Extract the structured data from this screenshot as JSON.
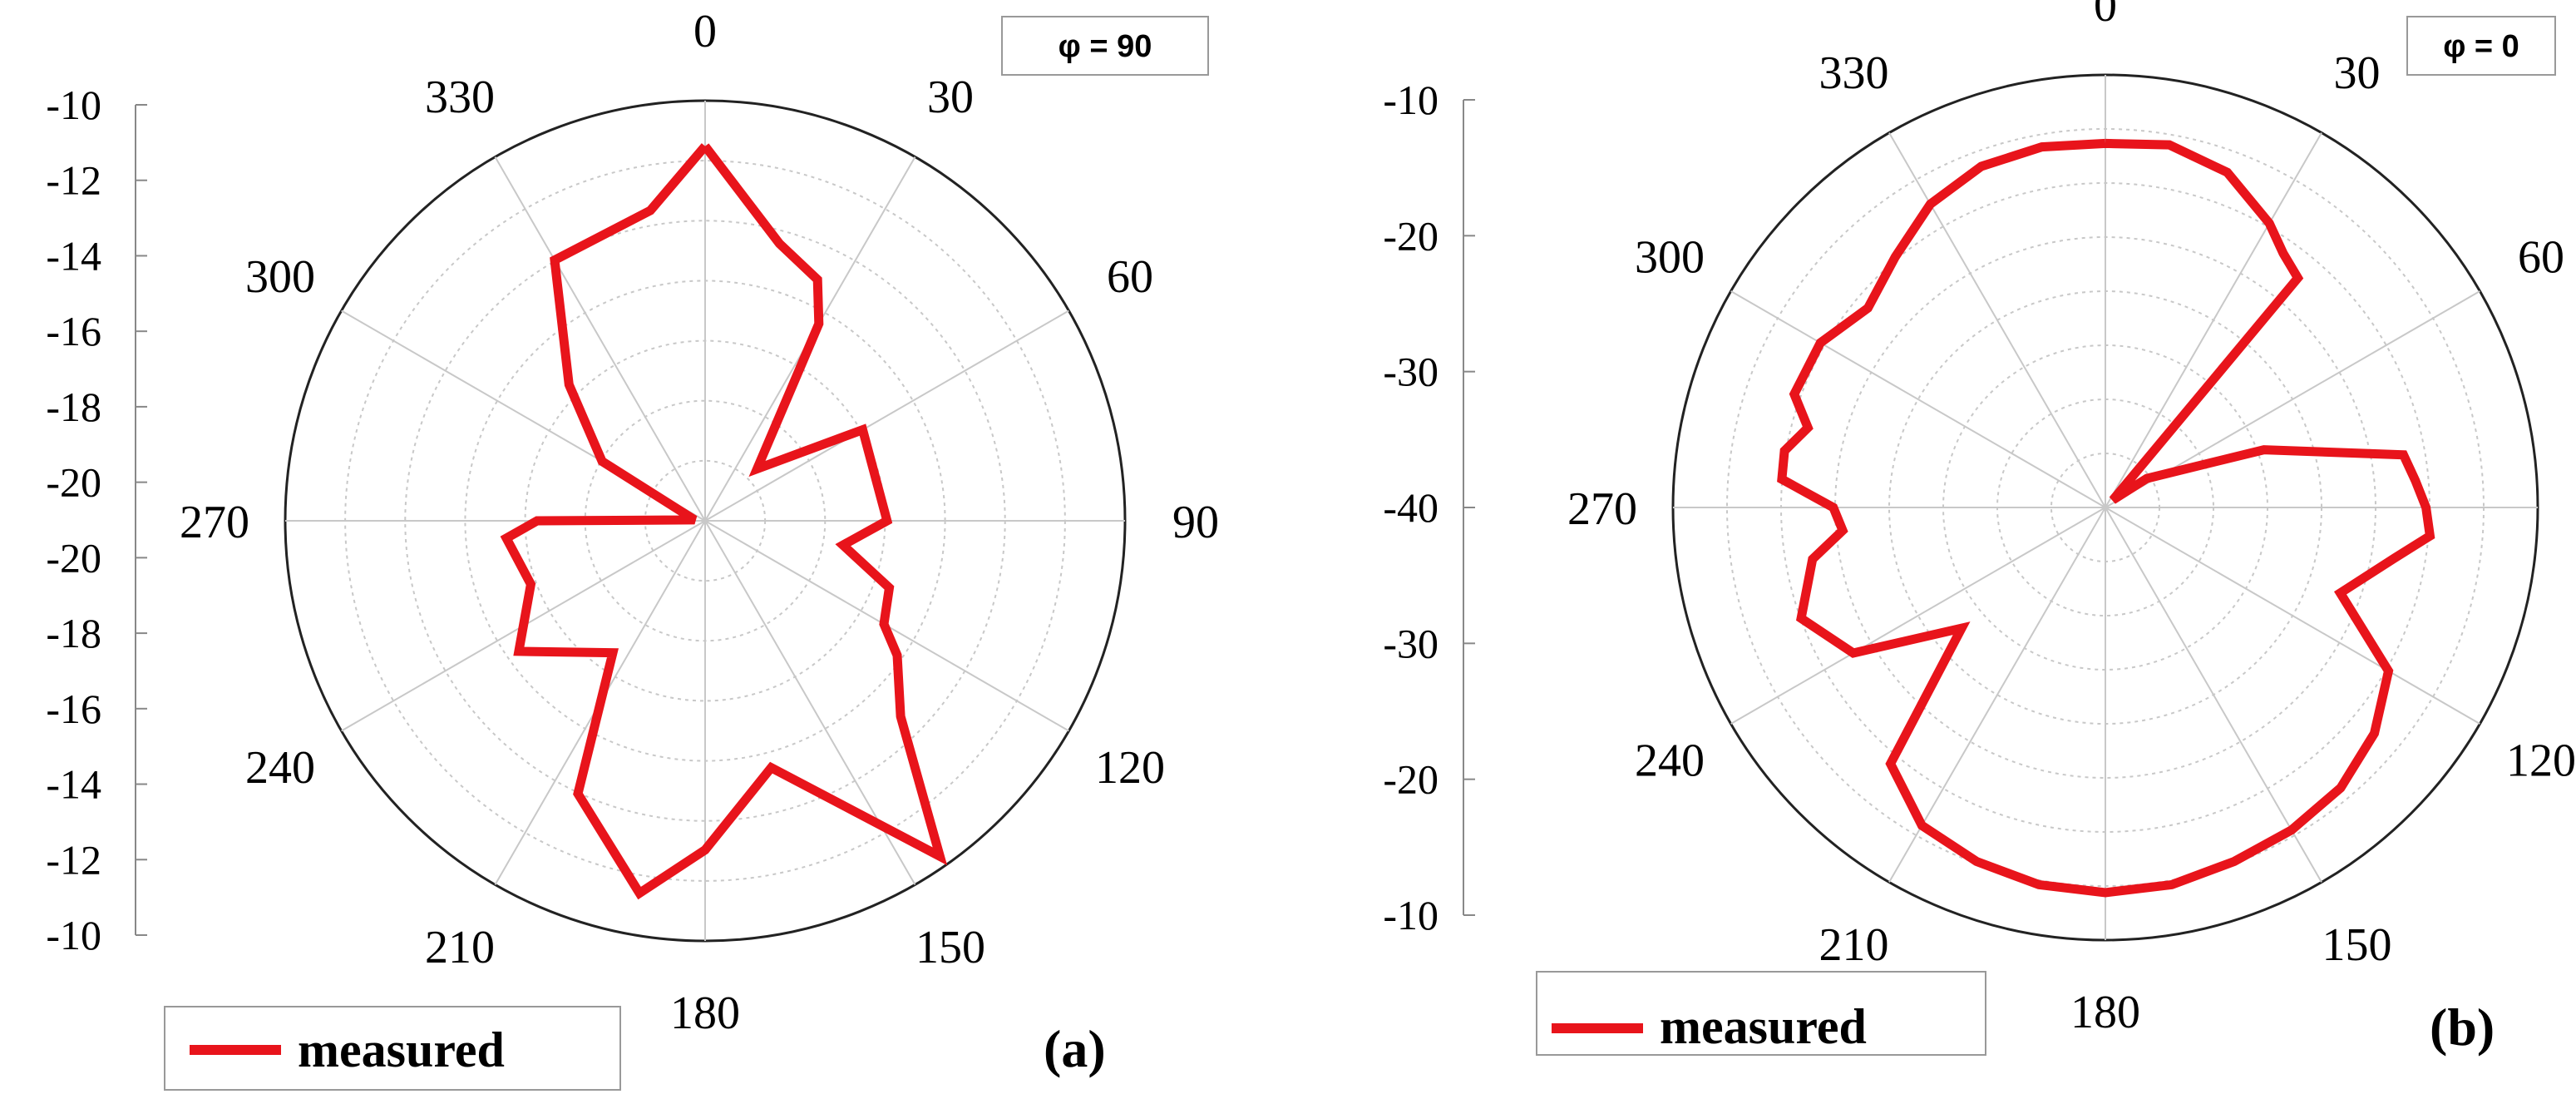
{
  "chart_data": [
    {
      "type": "polar-line",
      "panel_label": "(a)",
      "phi_label": "φ = 90",
      "legend": [
        "measured"
      ],
      "color": "#e8141b",
      "radial_ticks": [
        "-10",
        "-12",
        "-14",
        "-16",
        "-18",
        "-20",
        "-20",
        "-18",
        "-16",
        "-14",
        "-12",
        "-10"
      ],
      "rmin": -22,
      "rmax": -10,
      "angle_labels": [
        "0",
        "30",
        "60",
        "90",
        "120",
        "150",
        "180",
        "210",
        "240",
        "270",
        "300",
        "330"
      ],
      "series": [
        {
          "name": "measured",
          "theta": [
            0,
            15,
            25,
            30,
            45,
            60,
            90,
            100,
            110,
            120,
            125,
            135,
            145,
            165,
            180,
            190,
            205,
            215,
            235,
            250,
            265,
            270,
            275,
            300,
            315,
            330,
            350,
            360
          ],
          "r": [
            -11.3,
            -13.8,
            -14.4,
            -15.5,
            -19.9,
            -16.8,
            -16.8,
            -18.0,
            -16.4,
            -16.1,
            -15.3,
            -14.1,
            -10.3,
            -14.7,
            -12.6,
            -11.2,
            -13.4,
            -17.4,
            -15.5,
            -16.7,
            -16.3,
            -17.2,
            -21.7,
            -18.6,
            -16.5,
            -13.4,
            -13.0,
            -11.3
          ]
        }
      ]
    },
    {
      "type": "polar-line",
      "panel_label": "(b)",
      "phi_label": "φ = 0",
      "legend": [
        "measured"
      ],
      "color": "#e8141b",
      "radial_ticks": [
        "-10",
        "-20",
        "-30",
        "-40",
        "-30",
        "-20",
        "-10"
      ],
      "rmin": -48,
      "rmax": -7,
      "angle_labels": [
        "0",
        "30",
        "60",
        "90",
        "120",
        "150",
        "180",
        "210",
        "240",
        "270",
        "300",
        "330"
      ],
      "series": [
        {
          "name": "measured",
          "theta": [
            0,
            10,
            20,
            30,
            35,
            40,
            45,
            55,
            70,
            80,
            85,
            90,
            95,
            100,
            110,
            120,
            130,
            140,
            150,
            160,
            170,
            180,
            190,
            200,
            210,
            220,
            230,
            240,
            250,
            260,
            265,
            270,
            275,
            280,
            285,
            290,
            300,
            310,
            320,
            330,
            340,
            350,
            360
          ],
          "r": [
            -13.5,
            -13.1,
            -14.2,
            -16.9,
            -18.6,
            -19.6,
            -47.0,
            -43.2,
            -32.0,
            -19.3,
            -18.5,
            -17.6,
            -17.1,
            -20.2,
            -24.3,
            -17.0,
            -14.7,
            -13.3,
            -12.7,
            -12.3,
            -11.7,
            -11.5,
            -11.7,
            -12.3,
            -13.2,
            -16.3,
            -30.2,
            -20.4,
            -17.3,
            -19.8,
            -23.0,
            -22.2,
            -17.2,
            -17.1,
            -18.8,
            -16.6,
            -16.8,
            -18.6,
            -17.0,
            -14.8,
            -13.6,
            -13.3,
            -13.5
          ]
        }
      ]
    }
  ]
}
